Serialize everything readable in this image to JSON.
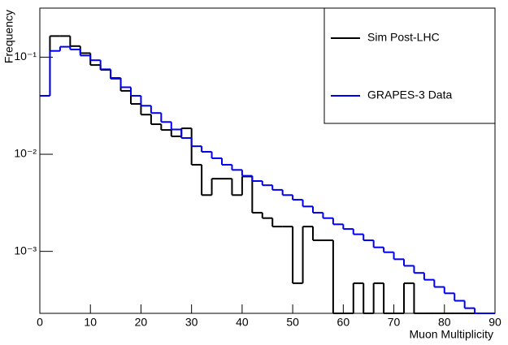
{
  "chart_data": {
    "type": "histogram",
    "xlabel": "Muon Multiplicity",
    "ylabel": "Frequency",
    "bins": [
      0,
      2,
      4,
      6,
      8,
      10,
      12,
      14,
      16,
      18,
      20,
      22,
      24,
      26,
      28,
      30,
      32,
      34,
      36,
      38,
      40,
      42,
      44,
      46,
      48,
      50,
      52,
      54,
      56,
      58,
      60,
      62,
      64,
      66,
      68,
      70,
      72,
      74,
      76,
      78,
      80,
      82,
      84,
      86,
      88,
      90
    ],
    "series": [
      {
        "name": "Sim Post-LHC",
        "color": "#000000",
        "values": [
          0.04,
          0.165,
          0.165,
          0.13,
          0.11,
          0.083,
          0.074,
          0.061,
          0.045,
          0.033,
          0.0256,
          0.0204,
          0.0178,
          0.0153,
          0.0185,
          0.0078,
          0.0038,
          0.0056,
          0.0056,
          0.0038,
          0.0059,
          0.0025,
          0.0022,
          0.0018,
          0.0018,
          0.00047,
          0.0018,
          0.0013,
          0.0013,
          0,
          0,
          0.00047,
          0,
          0.00047,
          0,
          0,
          0.00047,
          0,
          0,
          0,
          0,
          0,
          0,
          0,
          0
        ]
      },
      {
        "name": "GRAPES-3 Data",
        "color": "#0000ee",
        "values": [
          0.04,
          0.116,
          0.128,
          0.12,
          0.104,
          0.093,
          0.075,
          0.06,
          0.049,
          0.04,
          0.0316,
          0.0266,
          0.0215,
          0.018,
          0.0147,
          0.0121,
          0.0106,
          0.0091,
          0.0078,
          0.0069,
          0.006,
          0.0053,
          0.0048,
          0.0043,
          0.0038,
          0.0034,
          0.0029,
          0.0025,
          0.0022,
          0.0019,
          0.0017,
          0.0015,
          0.0013,
          0.0011,
          0.00098,
          0.00083,
          0.00071,
          0.0006,
          0.00051,
          0.00043,
          0.00037,
          0.00031,
          0.00026,
          0.00023,
          0
        ]
      }
    ],
    "xlim": [
      0,
      90
    ],
    "xticks": [
      0,
      10,
      20,
      30,
      40,
      50,
      60,
      70,
      80,
      90
    ],
    "ylim": [
      0.00023,
      0.32
    ],
    "ylog": true,
    "yticks": [
      {
        "value": 0.001,
        "label": "10⁻³"
      },
      {
        "value": 0.01,
        "label": "10⁻²"
      },
      {
        "value": 0.1,
        "label": "10⁻¹"
      }
    ],
    "legend": "upper right"
  }
}
